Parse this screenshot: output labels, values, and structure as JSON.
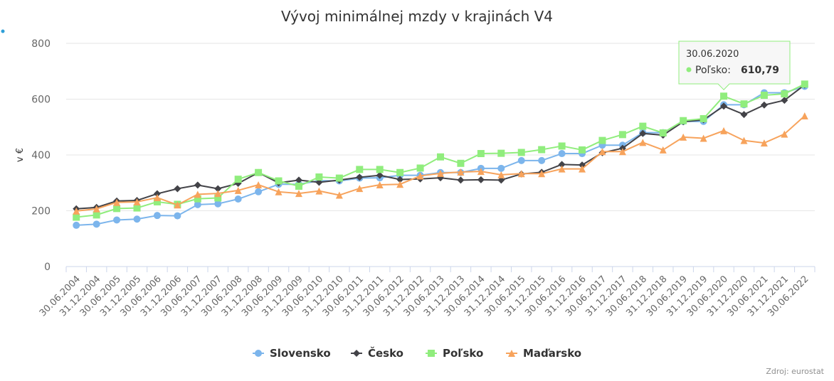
{
  "chart_data": {
    "type": "line",
    "title": "Vývoj minimálnej mzdy v krajinách V4",
    "ylabel": "v €",
    "xlabel": "",
    "ylim": [
      0,
      800
    ],
    "yticks": [
      0,
      200,
      400,
      600,
      800
    ],
    "grid": true,
    "legend_position": "bottom",
    "credits": "Zdroj: eurostat",
    "categories": [
      "30.06.2004",
      "31.12.2004",
      "30.06.2005",
      "31.12.2005",
      "30.06.2006",
      "31.12.2006",
      "30.06.2007",
      "31.12.2007",
      "30.06.2008",
      "31.12.2008",
      "30.06.2009",
      "31.12.2009",
      "30.06.2010",
      "31.12.2010",
      "30.06.2011",
      "31.12.2011",
      "30.06.2012",
      "31.12.2012",
      "30.06.2013",
      "31.12.2013",
      "30.06.2014",
      "31.12.2014",
      "30.06.2015",
      "31.12.2015",
      "30.06.2016",
      "31.12.2016",
      "30.06.2017",
      "31.12.2017",
      "30.06.2018",
      "31.12.2018",
      "30.06.2019",
      "31.12.2019",
      "30.06.2020",
      "31.12.2020",
      "30.06.2021",
      "31.12.2021",
      "30.06.2022"
    ],
    "series": [
      {
        "name": "Slovensko",
        "color": "#7cb5ec",
        "marker": "circle",
        "values": [
          148,
          152,
          167,
          170,
          183,
          182,
          222,
          225,
          242,
          268,
          295,
          295,
          308,
          307,
          317,
          318,
          327,
          327,
          337,
          337,
          352,
          352,
          380,
          380,
          405,
          405,
          435,
          435,
          480,
          480,
          520,
          520,
          580,
          580,
          623,
          623,
          646
        ]
      },
      {
        "name": "Česko",
        "color": "#434348",
        "marker": "diamond",
        "values": [
          207,
          212,
          235,
          237,
          261,
          279,
          292,
          279,
          298,
          337,
          300,
          310,
          302,
          310,
          320,
          327,
          312,
          314,
          318,
          310,
          311,
          310,
          332,
          338,
          366,
          364,
          408,
          424,
          477,
          471,
          519,
          526,
          575,
          545,
          579,
          596,
          651
        ]
      },
      {
        "name": "Poľsko",
        "color": "#90ed7d",
        "marker": "square",
        "values": [
          177,
          185,
          208,
          210,
          232,
          223,
          243,
          246,
          313,
          337,
          307,
          288,
          321,
          317,
          348,
          348,
          337,
          353,
          393,
          370,
          405,
          406,
          409,
          419,
          432,
          418,
          452,
          473,
          503,
          479,
          523,
          530,
          610.79,
          583,
          614,
          619,
          654
        ]
      },
      {
        "name": "Maďarsko",
        "color": "#f7a35c",
        "marker": "triangle",
        "values": [
          199,
          207,
          230,
          232,
          247,
          221,
          259,
          262,
          273,
          293,
          268,
          262,
          271,
          256,
          280,
          293,
          295,
          325,
          334,
          339,
          341,
          329,
          333,
          333,
          350,
          350,
          412,
          412,
          445,
          418,
          464,
          460,
          487,
          452,
          443,
          475,
          540
        ]
      }
    ],
    "tooltip": {
      "date": "30.06.2020",
      "series": "Poľsko",
      "value": "610,79"
    }
  }
}
